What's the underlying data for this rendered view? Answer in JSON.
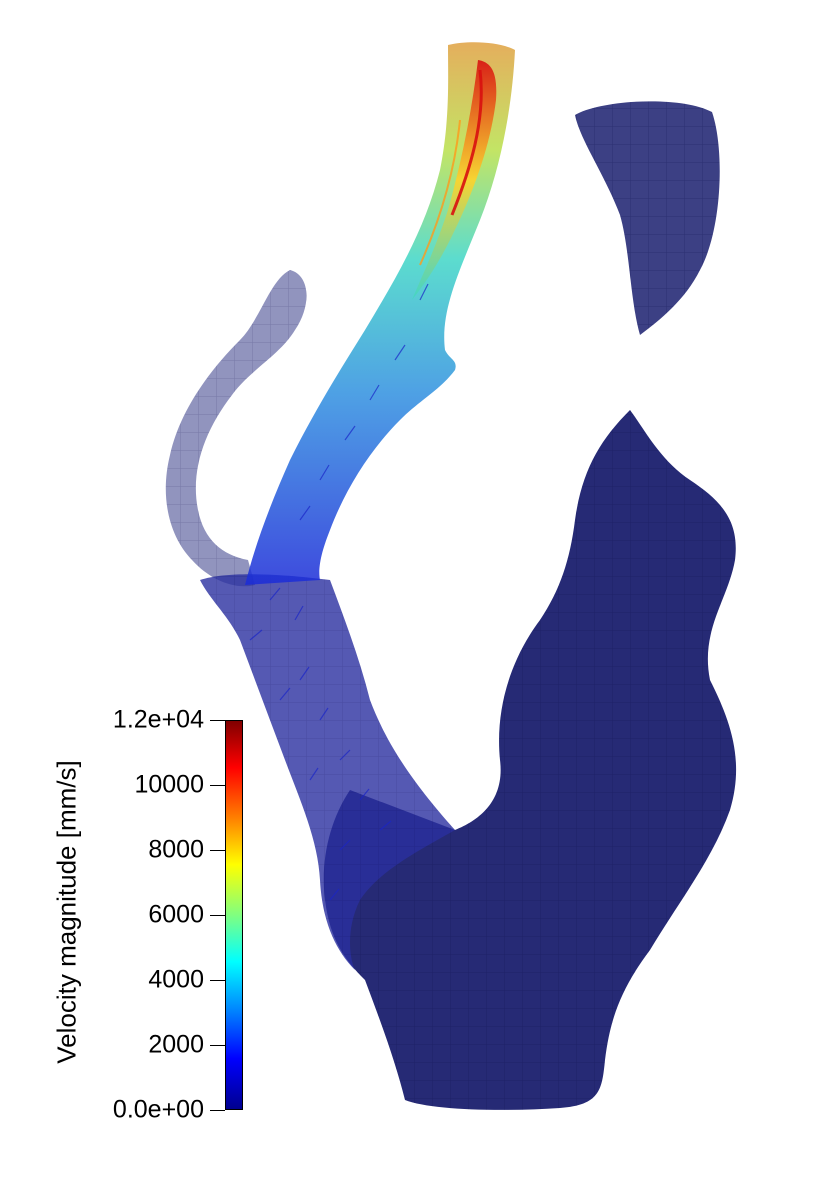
{
  "figure": {
    "colors": {
      "tissue": "#1a1f6e",
      "tissue_light": "#6c70a8",
      "background": "#ffffff"
    },
    "colorbar": {
      "title": "Velocity magnitude [mm/s]",
      "colormap": "jet",
      "min": 0,
      "max": 12000,
      "ticks": [
        {
          "value": 12000,
          "label": "1.2e+04"
        },
        {
          "value": 10000,
          "label": "10000"
        },
        {
          "value": 8000,
          "label": "8000"
        },
        {
          "value": 6000,
          "label": "6000"
        },
        {
          "value": 4000,
          "label": "4000"
        },
        {
          "value": 2000,
          "label": "2000"
        },
        {
          "value": 0,
          "label": "0.0e+00"
        }
      ]
    }
  }
}
